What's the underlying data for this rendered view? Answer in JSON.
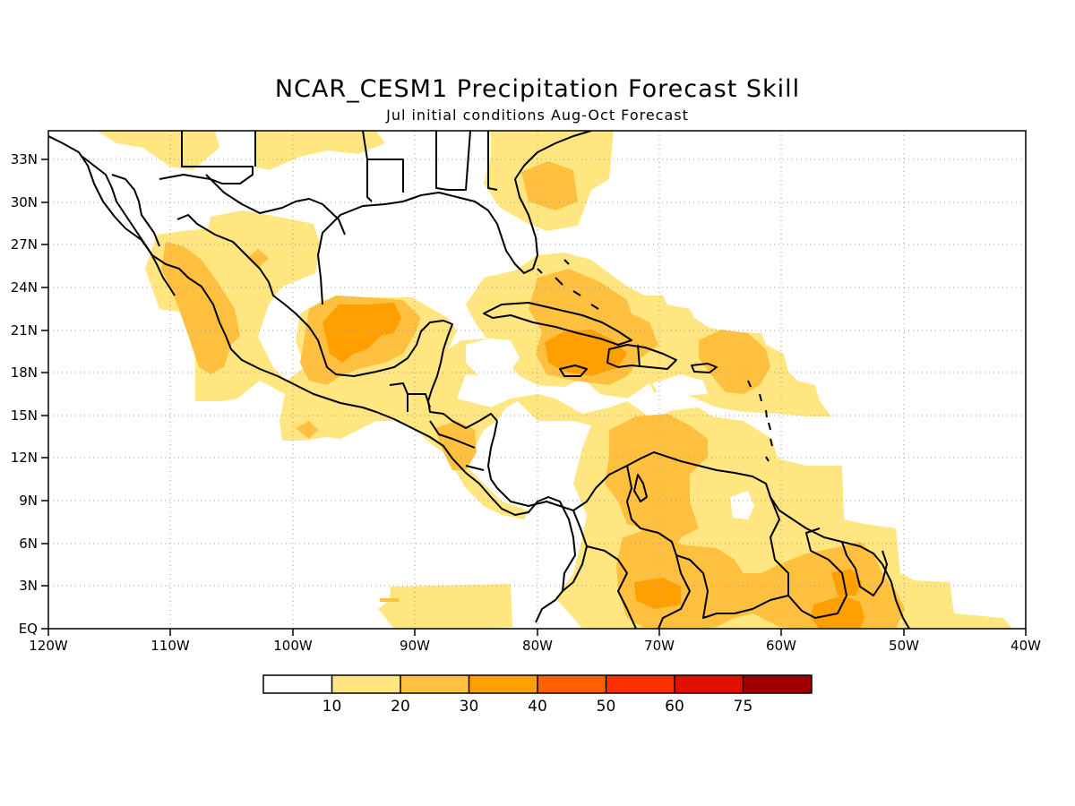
{
  "title": "NCAR_CESM1 Precipitation Forecast Skill",
  "subtitle": "Jul initial conditions  Aug-Oct Forecast",
  "map": {
    "lon_range": [
      -120,
      -40
    ],
    "lat_range": [
      0,
      35
    ],
    "grid": true,
    "lon_labels": [
      "120W",
      "110W",
      "100W",
      "90W",
      "80W",
      "70W",
      "60W",
      "50W",
      "40W"
    ],
    "lat_labels": [
      "EQ",
      "3N",
      "6N",
      "9N",
      "12N",
      "15N",
      "18N",
      "21N",
      "24N",
      "27N",
      "30N",
      "33N"
    ],
    "colors": [
      "#ffffff",
      "#ffe680",
      "#ffc040",
      "#ffa000",
      "#ff6000",
      "#ff3000",
      "#e01000",
      "#a00000"
    ]
  },
  "colorbar": {
    "labels": [
      "10",
      "20",
      "30",
      "40",
      "50",
      "60",
      "75"
    ],
    "colors": [
      "#ffffff",
      "#ffe680",
      "#ffc040",
      "#ffa000",
      "#ff6000",
      "#ff3000",
      "#e01000",
      "#a00000"
    ]
  }
}
